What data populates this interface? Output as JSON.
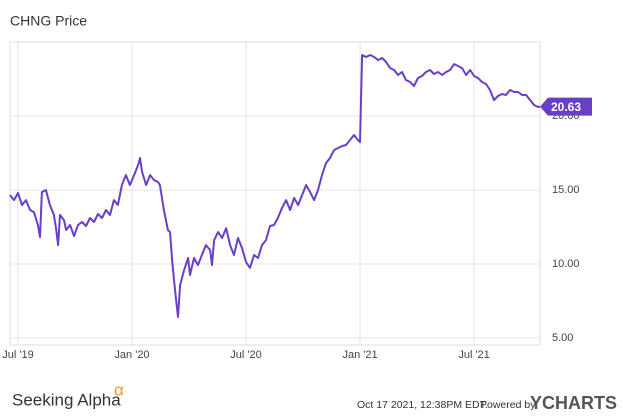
{
  "chart_data": {
    "type": "line",
    "title": "CHNG Price",
    "x": [
      5.58,
      5.79,
      6.0,
      6.21,
      6.42,
      6.63,
      6.84,
      7.05,
      7.16,
      7.26,
      7.47,
      7.68,
      7.89,
      8.0,
      8.11,
      8.21,
      8.42,
      8.53,
      8.74,
      8.95,
      9.16,
      9.37,
      9.58,
      9.79,
      10.0,
      10.21,
      10.42,
      10.63,
      10.84,
      11.05,
      11.26,
      11.47,
      11.68,
      11.89,
      12.11,
      12.32,
      12.42,
      12.53,
      12.74,
      12.95,
      13.16,
      13.37,
      13.47,
      13.68,
      13.89,
      14.0,
      14.11,
      14.21,
      14.32,
      14.42,
      14.53,
      14.74,
      14.95,
      15.05,
      15.26,
      15.47,
      15.68,
      15.89,
      16.11,
      16.21,
      16.32,
      16.53,
      16.74,
      16.95,
      17.16,
      17.37,
      17.58,
      17.79,
      18.0,
      18.21,
      18.42,
      18.63,
      18.84,
      19.05,
      19.26,
      19.47,
      19.68,
      19.89,
      20.11,
      20.32,
      20.53,
      20.74,
      20.95,
      21.16,
      21.37,
      21.58,
      21.79,
      22.0,
      22.21,
      22.42,
      22.63,
      22.84,
      23.05,
      23.26,
      23.47,
      23.68,
      23.89,
      24.0,
      24.11,
      24.32,
      24.53,
      24.74,
      24.95,
      25.16,
      25.37,
      25.58,
      25.79,
      26.0,
      26.21,
      26.42,
      26.63,
      26.84,
      27.05,
      27.26,
      27.47,
      27.68,
      27.89,
      28.11,
      28.32,
      28.53,
      28.74,
      28.95,
      29.16,
      29.37,
      29.58,
      29.79,
      30.0,
      30.21,
      30.42,
      30.63,
      30.84,
      31.05,
      31.26,
      31.47,
      31.68,
      31.89,
      32.11,
      32.32,
      32.53,
      32.74,
      32.95,
      33.16,
      33.37,
      33.47
    ],
    "series": [
      {
        "name": "CHNG Price",
        "color": "#6a3fc8",
        "values": [
          14.66,
          14.32,
          14.8,
          13.99,
          14.32,
          13.65,
          13.51,
          12.64,
          11.82,
          14.86,
          15.0,
          13.99,
          13.31,
          12.43,
          11.28,
          13.31,
          12.97,
          12.3,
          12.64,
          11.89,
          12.64,
          12.84,
          12.57,
          13.11,
          12.84,
          13.38,
          13.11,
          13.65,
          13.31,
          14.32,
          13.99,
          15.34,
          16.01,
          15.34,
          16.01,
          16.69,
          17.16,
          16.22,
          15.34,
          16.01,
          15.68,
          15.54,
          15.34,
          13.65,
          12.3,
          12.16,
          10.27,
          8.92,
          7.57,
          6.42,
          8.58,
          9.59,
          10.41,
          9.26,
          10.41,
          9.93,
          10.61,
          11.28,
          10.95,
          9.93,
          11.62,
          12.16,
          11.76,
          12.43,
          11.28,
          10.61,
          11.76,
          11.08,
          10.14,
          9.73,
          10.61,
          10.41,
          11.28,
          11.62,
          12.57,
          12.64,
          13.11,
          13.78,
          14.32,
          13.65,
          14.46,
          13.99,
          14.66,
          15.34,
          14.86,
          14.32,
          15.0,
          16.01,
          16.82,
          17.16,
          17.7,
          17.84,
          17.97,
          18.04,
          18.38,
          18.72,
          18.38,
          18.24,
          24.12,
          23.99,
          24.12,
          23.99,
          23.78,
          23.92,
          23.65,
          23.24,
          23.11,
          22.77,
          22.97,
          22.43,
          22.3,
          22.03,
          22.57,
          22.7,
          22.97,
          23.11,
          22.84,
          22.97,
          22.77,
          22.97,
          23.11,
          23.51,
          23.38,
          23.24,
          22.77,
          23.11,
          22.7,
          22.57,
          22.3,
          22.16,
          21.76,
          21.08,
          21.35,
          21.49,
          21.42,
          21.76,
          21.62,
          21.62,
          21.42,
          21.42,
          21.08,
          20.74,
          20.61,
          20.63
        ]
      }
    ],
    "xlim": [
      5.58,
      33.47
    ],
    "xticks": [
      {
        "value": 6,
        "label": "Jul '19"
      },
      {
        "value": 12,
        "label": "Jan '20"
      },
      {
        "value": 18,
        "label": "Jul '20"
      },
      {
        "value": 24,
        "label": "Jan '21"
      },
      {
        "value": 30,
        "label": "Jul '21"
      }
    ],
    "ylim": [
      4.53,
      25
    ],
    "yticks": [
      {
        "value": 5,
        "label": "5.00"
      },
      {
        "value": 10,
        "label": "10.00"
      },
      {
        "value": 15,
        "label": "15.00"
      },
      {
        "value": 20,
        "label": "20.00"
      }
    ],
    "grid": true
  },
  "footer": {
    "brand": "Seeking Alpha",
    "brand_mark": "α",
    "timestamp": "Oct 17 2021, 12:38PM EDT.",
    "powered_by": "Powered by",
    "provider": "YCHARTS"
  }
}
